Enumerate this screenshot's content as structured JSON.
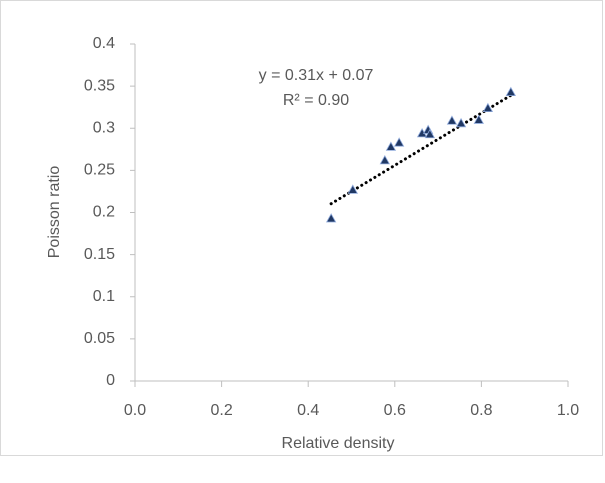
{
  "chart_data": {
    "type": "scatter",
    "x_label": "Relative density",
    "y_label": "Poisson ratio",
    "x": [
      0.453,
      0.503,
      0.577,
      0.591,
      0.61,
      0.663,
      0.677,
      0.681,
      0.732,
      0.753,
      0.794,
      0.815,
      0.868
    ],
    "values": [
      0.193,
      0.227,
      0.262,
      0.278,
      0.283,
      0.294,
      0.298,
      0.293,
      0.309,
      0.306,
      0.31,
      0.324,
      0.343
    ],
    "color": "#203864",
    "trendline": {
      "slope": 0.31,
      "intercept": 0.07,
      "label": "y = 0.31x + 0.07",
      "r2_label": "R² = 0.90"
    },
    "xlim": [
      0,
      1
    ],
    "xticks": [
      {
        "value": 0,
        "label": "0.0"
      },
      0.2,
      0.4,
      0.6,
      0.8,
      {
        "value": 1,
        "label": "1.0"
      }
    ],
    "ylim": [
      0,
      0.4
    ],
    "yticks": [
      0,
      0.05,
      0.1,
      0.15,
      0.2,
      0.25,
      0.3,
      0.35,
      0.4
    ],
    "grid": false
  }
}
